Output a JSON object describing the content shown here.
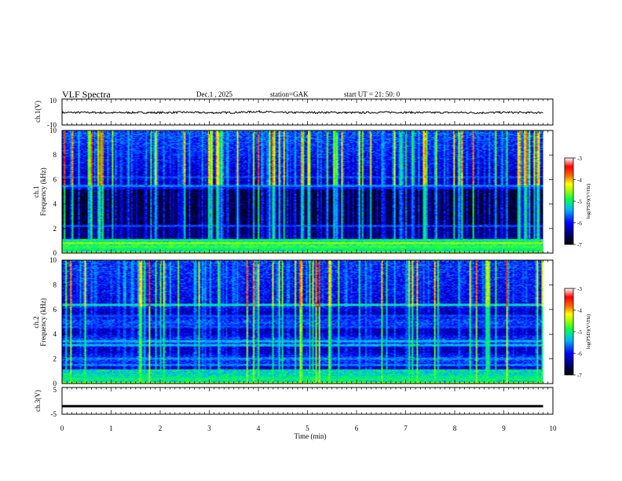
{
  "header": {
    "title": "VLF  Spectra",
    "date": "Dec.1  , 2025",
    "station": "station=GAK",
    "start": "start  UT  =    21: 50: 0"
  },
  "chart_data": [
    {
      "type": "line",
      "name": "ch1-waveform",
      "ylabel": "ch.1(V)",
      "ylim": [
        -10,
        10
      ],
      "yticks": [
        "10",
        "-10"
      ],
      "xlim": [
        0,
        10
      ],
      "x": [
        0,
        0.5,
        1,
        1.5,
        2,
        2.5,
        3,
        3.5,
        4,
        4.5,
        5,
        5.5,
        6,
        6.5,
        7,
        7.5,
        8,
        8.5,
        9,
        9.5,
        9.8
      ],
      "y": [
        -0.5,
        -0.3,
        -0.6,
        -0.4,
        -0.5,
        -0.2,
        -0.6,
        -0.4,
        0.3,
        -0.5,
        -0.4,
        -0.3,
        -0.6,
        -0.2,
        -0.3,
        -0.5,
        -0.4,
        -0.6,
        -0.3,
        -0.5,
        -0.4
      ]
    },
    {
      "type": "heatmap",
      "name": "ch1-spectrogram",
      "ylabel": "ch.1",
      "ylabel2": "Frequency  (kHz)",
      "ylim": [
        0,
        10
      ],
      "yticks": [
        "0",
        "2",
        "4",
        "6",
        "8",
        "10"
      ],
      "xlim": [
        0,
        10
      ],
      "data_xmax": 9.8,
      "colorbar": {
        "label": "log(PSD)(V²/Hz)",
        "range": [
          -7,
          -3
        ],
        "ticks": [
          "-3",
          "-4",
          "-5",
          "-6",
          "-7"
        ]
      }
    },
    {
      "type": "heatmap",
      "name": "ch2-spectrogram",
      "ylabel": "ch.2",
      "ylabel2": "Frequency  (kHz)",
      "ylim": [
        0,
        10
      ],
      "yticks": [
        "0",
        "2",
        "4",
        "6",
        "8",
        "10"
      ],
      "xlim": [
        0,
        10
      ],
      "data_xmax": 9.8,
      "colorbar": {
        "label": "log(PSD)(V²/Hz)",
        "range": [
          -7,
          -3
        ],
        "ticks": [
          "-3",
          "-4",
          "-5",
          "-6",
          "-7"
        ]
      }
    },
    {
      "type": "line",
      "name": "ch3-waveform",
      "ylabel": "ch.3(V)",
      "ylim": [
        -5,
        5
      ],
      "yticks": [
        "5",
        "-5"
      ],
      "xlim": [
        0,
        10
      ],
      "x": [
        0,
        9.8
      ],
      "y": [
        -2,
        -2
      ]
    }
  ],
  "xaxis": {
    "label": "Time  (min)",
    "ticks": [
      "0",
      "1",
      "2",
      "3",
      "4",
      "5",
      "6",
      "7",
      "8",
      "9",
      "10"
    ]
  }
}
